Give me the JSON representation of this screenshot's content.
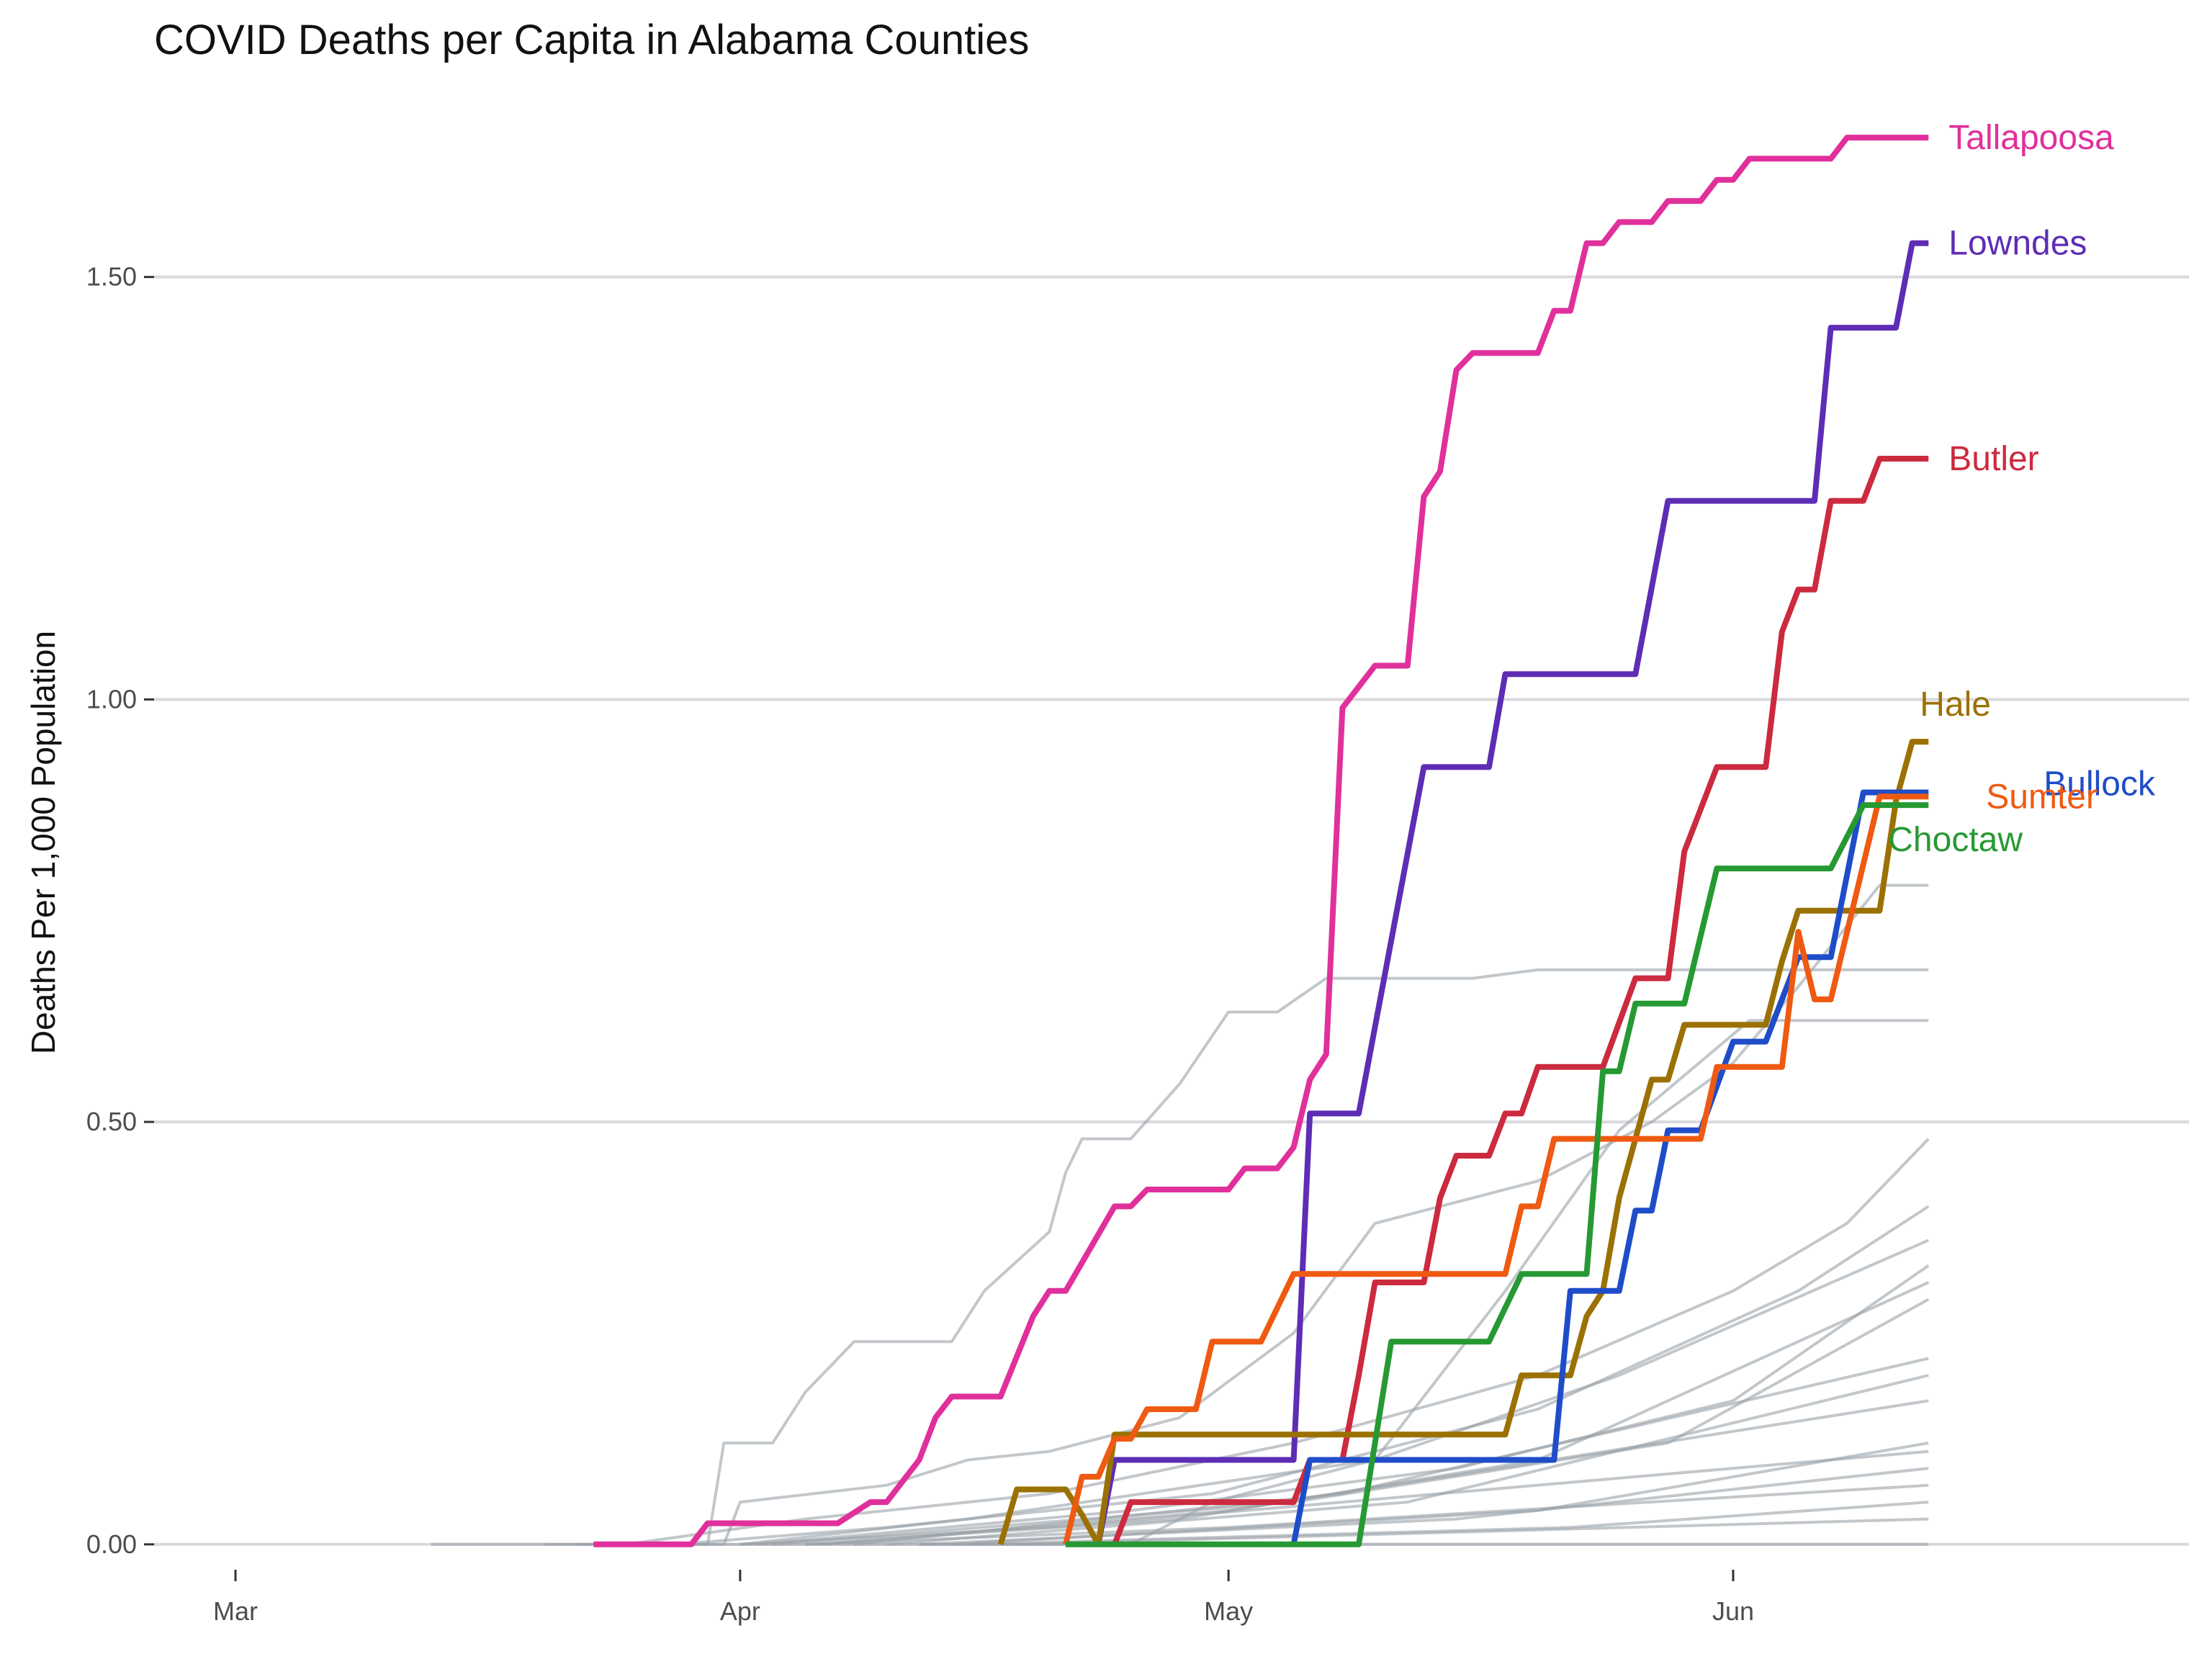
{
  "chart_data": {
    "type": "line",
    "title": "COVID Deaths per Capita in Alabama Counties",
    "xlabel": "",
    "ylabel": "Deaths Per 1,000 Population",
    "x_ticks": [
      {
        "label": "Mar",
        "date": "2020-03-01"
      },
      {
        "label": "Apr",
        "date": "2020-04-01"
      },
      {
        "label": "May",
        "date": "2020-05-01"
      },
      {
        "label": "Jun",
        "date": "2020-06-01"
      }
    ],
    "y_ticks": [
      0.0,
      0.5,
      1.0,
      1.5
    ],
    "y_tick_labels": [
      "0.00",
      "0.50",
      "1.00",
      "1.50"
    ],
    "xlim": [
      "2020-02-25",
      "2020-06-29"
    ],
    "ylim": [
      -0.03,
      1.7
    ],
    "grid": true,
    "legend": "direct labels at line ends",
    "background_color": "#9aa1a9",
    "series": [
      {
        "name": "Tallapoosa",
        "color": "#e0309b",
        "points": [
          [
            "2020-03-23",
            0
          ],
          [
            "2020-03-29",
            0
          ],
          [
            "2020-03-30",
            0.025
          ],
          [
            "2020-04-07",
            0.025
          ],
          [
            "2020-04-09",
            0.05
          ],
          [
            "2020-04-10",
            0.05
          ],
          [
            "2020-04-12",
            0.1
          ],
          [
            "2020-04-13",
            0.15
          ],
          [
            "2020-04-14",
            0.175
          ],
          [
            "2020-04-17",
            0.175
          ],
          [
            "2020-04-19",
            0.27
          ],
          [
            "2020-04-20",
            0.3
          ],
          [
            "2020-04-21",
            0.3
          ],
          [
            "2020-04-24",
            0.4
          ],
          [
            "2020-04-25",
            0.4
          ],
          [
            "2020-04-26",
            0.42
          ],
          [
            "2020-05-01",
            0.42
          ],
          [
            "2020-05-02",
            0.445
          ],
          [
            "2020-05-04",
            0.445
          ],
          [
            "2020-05-05",
            0.47
          ],
          [
            "2020-05-06",
            0.55
          ],
          [
            "2020-05-07",
            0.58
          ],
          [
            "2020-05-08",
            0.99
          ],
          [
            "2020-05-10",
            1.04
          ],
          [
            "2020-05-12",
            1.04
          ],
          [
            "2020-05-13",
            1.24
          ],
          [
            "2020-05-14",
            1.27
          ],
          [
            "2020-05-15",
            1.39
          ],
          [
            "2020-05-16",
            1.41
          ],
          [
            "2020-05-20",
            1.41
          ],
          [
            "2020-05-21",
            1.46
          ],
          [
            "2020-05-22",
            1.46
          ],
          [
            "2020-05-23",
            1.54
          ],
          [
            "2020-05-24",
            1.54
          ],
          [
            "2020-05-25",
            1.565
          ],
          [
            "2020-05-27",
            1.565
          ],
          [
            "2020-05-28",
            1.59
          ],
          [
            "2020-05-30",
            1.59
          ],
          [
            "2020-05-31",
            1.615
          ],
          [
            "2020-06-01",
            1.615
          ],
          [
            "2020-06-02",
            1.64
          ],
          [
            "2020-06-07",
            1.64
          ],
          [
            "2020-06-08",
            1.665
          ],
          [
            "2020-06-13",
            1.665
          ]
        ]
      },
      {
        "name": "Lowndes",
        "color": "#5e2db5",
        "points": [
          [
            "2020-04-23",
            0
          ],
          [
            "2020-04-24",
            0.1
          ],
          [
            "2020-05-05",
            0.1
          ],
          [
            "2020-05-06",
            0.51
          ],
          [
            "2020-05-09",
            0.51
          ],
          [
            "2020-05-13",
            0.92
          ],
          [
            "2020-05-17",
            0.92
          ],
          [
            "2020-05-18",
            1.03
          ],
          [
            "2020-05-26",
            1.03
          ],
          [
            "2020-05-28",
            1.235
          ],
          [
            "2020-06-06",
            1.235
          ],
          [
            "2020-06-07",
            1.44
          ],
          [
            "2020-06-11",
            1.44
          ],
          [
            "2020-06-12",
            1.54
          ],
          [
            "2020-06-13",
            1.54
          ]
        ]
      },
      {
        "name": "Butler",
        "color": "#cc2a3e",
        "points": [
          [
            "2020-04-24",
            0
          ],
          [
            "2020-04-25",
            0.05
          ],
          [
            "2020-05-05",
            0.05
          ],
          [
            "2020-05-06",
            0.1
          ],
          [
            "2020-05-08",
            0.1
          ],
          [
            "2020-05-09",
            0.2
          ],
          [
            "2020-05-10",
            0.31
          ],
          [
            "2020-05-13",
            0.31
          ],
          [
            "2020-05-14",
            0.41
          ],
          [
            "2020-05-15",
            0.46
          ],
          [
            "2020-05-17",
            0.46
          ],
          [
            "2020-05-18",
            0.51
          ],
          [
            "2020-05-19",
            0.51
          ],
          [
            "2020-05-20",
            0.565
          ],
          [
            "2020-05-24",
            0.565
          ],
          [
            "2020-05-26",
            0.67
          ],
          [
            "2020-05-28",
            0.67
          ],
          [
            "2020-05-29",
            0.82
          ],
          [
            "2020-05-31",
            0.92
          ],
          [
            "2020-06-03",
            0.92
          ],
          [
            "2020-06-04",
            1.08
          ],
          [
            "2020-06-05",
            1.13
          ],
          [
            "2020-06-06",
            1.13
          ],
          [
            "2020-06-07",
            1.235
          ],
          [
            "2020-06-09",
            1.235
          ],
          [
            "2020-06-10",
            1.285
          ],
          [
            "2020-06-13",
            1.285
          ]
        ]
      },
      {
        "name": "Hale",
        "color": "#9b7104",
        "points": [
          [
            "2020-04-17",
            0
          ],
          [
            "2020-04-18",
            0.065
          ],
          [
            "2020-04-21",
            0.065
          ],
          [
            "2020-04-22",
            0.035
          ],
          [
            "2020-04-23",
            0
          ],
          [
            "2020-04-24",
            0.13
          ],
          [
            "2020-05-18",
            0.13
          ],
          [
            "2020-05-19",
            0.2
          ],
          [
            "2020-05-22",
            0.2
          ],
          [
            "2020-05-23",
            0.27
          ],
          [
            "2020-05-24",
            0.3
          ],
          [
            "2020-05-25",
            0.41
          ],
          [
            "2020-05-26",
            0.48
          ],
          [
            "2020-05-27",
            0.55
          ],
          [
            "2020-05-28",
            0.55
          ],
          [
            "2020-05-29",
            0.615
          ],
          [
            "2020-06-03",
            0.615
          ],
          [
            "2020-06-04",
            0.69
          ],
          [
            "2020-06-05",
            0.75
          ],
          [
            "2020-06-10",
            0.75
          ],
          [
            "2020-06-11",
            0.88
          ],
          [
            "2020-06-12",
            0.95
          ],
          [
            "2020-06-13",
            0.95
          ]
        ]
      },
      {
        "name": "Bullock",
        "color": "#1f4dc9",
        "points": [
          [
            "2020-05-05",
            0
          ],
          [
            "2020-05-06",
            0.1
          ],
          [
            "2020-05-21",
            0.1
          ],
          [
            "2020-05-22",
            0.3
          ],
          [
            "2020-05-25",
            0.3
          ],
          [
            "2020-05-26",
            0.395
          ],
          [
            "2020-05-27",
            0.395
          ],
          [
            "2020-05-28",
            0.49
          ],
          [
            "2020-05-30",
            0.49
          ],
          [
            "2020-06-01",
            0.595
          ],
          [
            "2020-06-03",
            0.595
          ],
          [
            "2020-06-05",
            0.695
          ],
          [
            "2020-06-07",
            0.695
          ],
          [
            "2020-06-09",
            0.89
          ],
          [
            "2020-06-13",
            0.89
          ]
        ]
      },
      {
        "name": "Sumter",
        "color": "#ef5a12",
        "points": [
          [
            "2020-04-21",
            0
          ],
          [
            "2020-04-22",
            0.08
          ],
          [
            "2020-04-23",
            0.08
          ],
          [
            "2020-04-24",
            0.125
          ],
          [
            "2020-04-25",
            0.125
          ],
          [
            "2020-04-26",
            0.16
          ],
          [
            "2020-04-29",
            0.16
          ],
          [
            "2020-04-30",
            0.24
          ],
          [
            "2020-05-03",
            0.24
          ],
          [
            "2020-05-05",
            0.32
          ],
          [
            "2020-05-18",
            0.32
          ],
          [
            "2020-05-19",
            0.4
          ],
          [
            "2020-05-20",
            0.4
          ],
          [
            "2020-05-21",
            0.48
          ],
          [
            "2020-05-30",
            0.48
          ],
          [
            "2020-05-31",
            0.565
          ],
          [
            "2020-06-04",
            0.565
          ],
          [
            "2020-06-05",
            0.725
          ],
          [
            "2020-06-06",
            0.645
          ],
          [
            "2020-06-07",
            0.645
          ],
          [
            "2020-06-08",
            0.725
          ],
          [
            "2020-06-09",
            0.805
          ],
          [
            "2020-06-10",
            0.885
          ],
          [
            "2020-06-13",
            0.885
          ]
        ]
      },
      {
        "name": "Choctaw",
        "color": "#269933",
        "points": [
          [
            "2020-04-21",
            0
          ],
          [
            "2020-05-09",
            0
          ],
          [
            "2020-05-11",
            0.24
          ],
          [
            "2020-05-17",
            0.24
          ],
          [
            "2020-05-19",
            0.32
          ],
          [
            "2020-05-23",
            0.32
          ],
          [
            "2020-05-24",
            0.56
          ],
          [
            "2020-05-25",
            0.56
          ],
          [
            "2020-05-26",
            0.64
          ],
          [
            "2020-05-29",
            0.64
          ],
          [
            "2020-05-31",
            0.8
          ],
          [
            "2020-06-07",
            0.8
          ],
          [
            "2020-06-09",
            0.875
          ],
          [
            "2020-06-13",
            0.875
          ]
        ]
      }
    ],
    "background_series": [
      [
        [
          "2020-03-13",
          0
        ],
        [
          "2020-03-30",
          0
        ],
        [
          "2020-03-31",
          0.12
        ],
        [
          "2020-04-03",
          0.12
        ],
        [
          "2020-04-05",
          0.18
        ],
        [
          "2020-04-08",
          0.24
        ],
        [
          "2020-04-14",
          0.24
        ],
        [
          "2020-04-16",
          0.3
        ],
        [
          "2020-04-18",
          0.335
        ],
        [
          "2020-04-20",
          0.37
        ],
        [
          "2020-04-21",
          0.44
        ],
        [
          "2020-04-22",
          0.48
        ],
        [
          "2020-04-25",
          0.48
        ],
        [
          "2020-04-28",
          0.545
        ],
        [
          "2020-05-01",
          0.63
        ],
        [
          "2020-05-04",
          0.63
        ],
        [
          "2020-05-07",
          0.67
        ],
        [
          "2020-05-16",
          0.67
        ],
        [
          "2020-05-20",
          0.68
        ],
        [
          "2020-06-13",
          0.68
        ]
      ],
      [
        [
          "2020-03-20",
          0
        ],
        [
          "2020-03-31",
          0
        ],
        [
          "2020-04-01",
          0.05
        ],
        [
          "2020-04-10",
          0.07
        ],
        [
          "2020-04-15",
          0.1
        ],
        [
          "2020-04-20",
          0.11
        ],
        [
          "2020-04-28",
          0.15
        ],
        [
          "2020-05-05",
          0.25
        ],
        [
          "2020-05-10",
          0.38
        ],
        [
          "2020-05-20",
          0.43
        ],
        [
          "2020-05-27",
          0.5
        ],
        [
          "2020-06-01",
          0.57
        ],
        [
          "2020-06-05",
          0.66
        ],
        [
          "2020-06-10",
          0.78
        ],
        [
          "2020-06-13",
          0.78
        ]
      ],
      [
        [
          "2020-04-12",
          0
        ],
        [
          "2020-04-25",
          0
        ],
        [
          "2020-04-30",
          0.05
        ],
        [
          "2020-05-10",
          0.1
        ],
        [
          "2020-05-18",
          0.3
        ],
        [
          "2020-05-25",
          0.49
        ],
        [
          "2020-06-02",
          0.62
        ],
        [
          "2020-06-13",
          0.62
        ]
      ],
      [
        [
          "2020-03-25",
          0
        ],
        [
          "2020-04-05",
          0.03
        ],
        [
          "2020-04-20",
          0.06
        ],
        [
          "2020-05-05",
          0.12
        ],
        [
          "2020-05-20",
          0.2
        ],
        [
          "2020-06-01",
          0.3
        ],
        [
          "2020-06-08",
          0.38
        ],
        [
          "2020-06-13",
          0.48
        ]
      ],
      [
        [
          "2020-03-28",
          0
        ],
        [
          "2020-04-10",
          0.02
        ],
        [
          "2020-04-30",
          0.06
        ],
        [
          "2020-05-20",
          0.16
        ],
        [
          "2020-06-05",
          0.3
        ],
        [
          "2020-06-13",
          0.4
        ]
      ],
      [
        [
          "2020-04-01",
          0
        ],
        [
          "2020-04-15",
          0.03
        ],
        [
          "2020-05-10",
          0.1
        ],
        [
          "2020-05-25",
          0.2
        ],
        [
          "2020-06-13",
          0.36
        ]
      ],
      [
        [
          "2020-04-02",
          0
        ],
        [
          "2020-04-25",
          0.04
        ],
        [
          "2020-05-15",
          0.09
        ],
        [
          "2020-06-01",
          0.17
        ],
        [
          "2020-06-13",
          0.33
        ]
      ],
      [
        [
          "2020-04-05",
          0
        ],
        [
          "2020-04-28",
          0.03
        ],
        [
          "2020-05-20",
          0.1
        ],
        [
          "2020-06-13",
          0.31
        ]
      ],
      [
        [
          "2020-04-03",
          0
        ],
        [
          "2020-05-05",
          0.05
        ],
        [
          "2020-05-28",
          0.12
        ],
        [
          "2020-06-13",
          0.29
        ]
      ],
      [
        [
          "2020-04-08",
          0
        ],
        [
          "2020-05-08",
          0.06
        ],
        [
          "2020-06-13",
          0.22
        ]
      ],
      [
        [
          "2020-04-10",
          0
        ],
        [
          "2020-05-12",
          0.05
        ],
        [
          "2020-06-13",
          0.2
        ]
      ],
      [
        [
          "2020-04-06",
          0
        ],
        [
          "2020-05-01",
          0.04
        ],
        [
          "2020-06-13",
          0.17
        ]
      ],
      [
        [
          "2020-04-14",
          0
        ],
        [
          "2020-05-20",
          0.04
        ],
        [
          "2020-06-13",
          0.12
        ]
      ],
      [
        [
          "2020-04-01",
          0
        ],
        [
          "2020-04-20",
          0.02
        ],
        [
          "2020-06-13",
          0.11
        ]
      ],
      [
        [
          "2020-04-12",
          0
        ],
        [
          "2020-05-15",
          0.03
        ],
        [
          "2020-06-13",
          0.09
        ]
      ],
      [
        [
          "2020-04-05",
          0
        ],
        [
          "2020-05-01",
          0.02
        ],
        [
          "2020-06-13",
          0.07
        ]
      ],
      [
        [
          "2020-04-15",
          0
        ],
        [
          "2020-05-22",
          0.02
        ],
        [
          "2020-06-13",
          0.05
        ]
      ],
      [
        [
          "2020-04-18",
          0
        ],
        [
          "2020-06-13",
          0.03
        ]
      ],
      [
        [
          "2020-03-22",
          0
        ],
        [
          "2020-06-13",
          0
        ]
      ]
    ]
  }
}
